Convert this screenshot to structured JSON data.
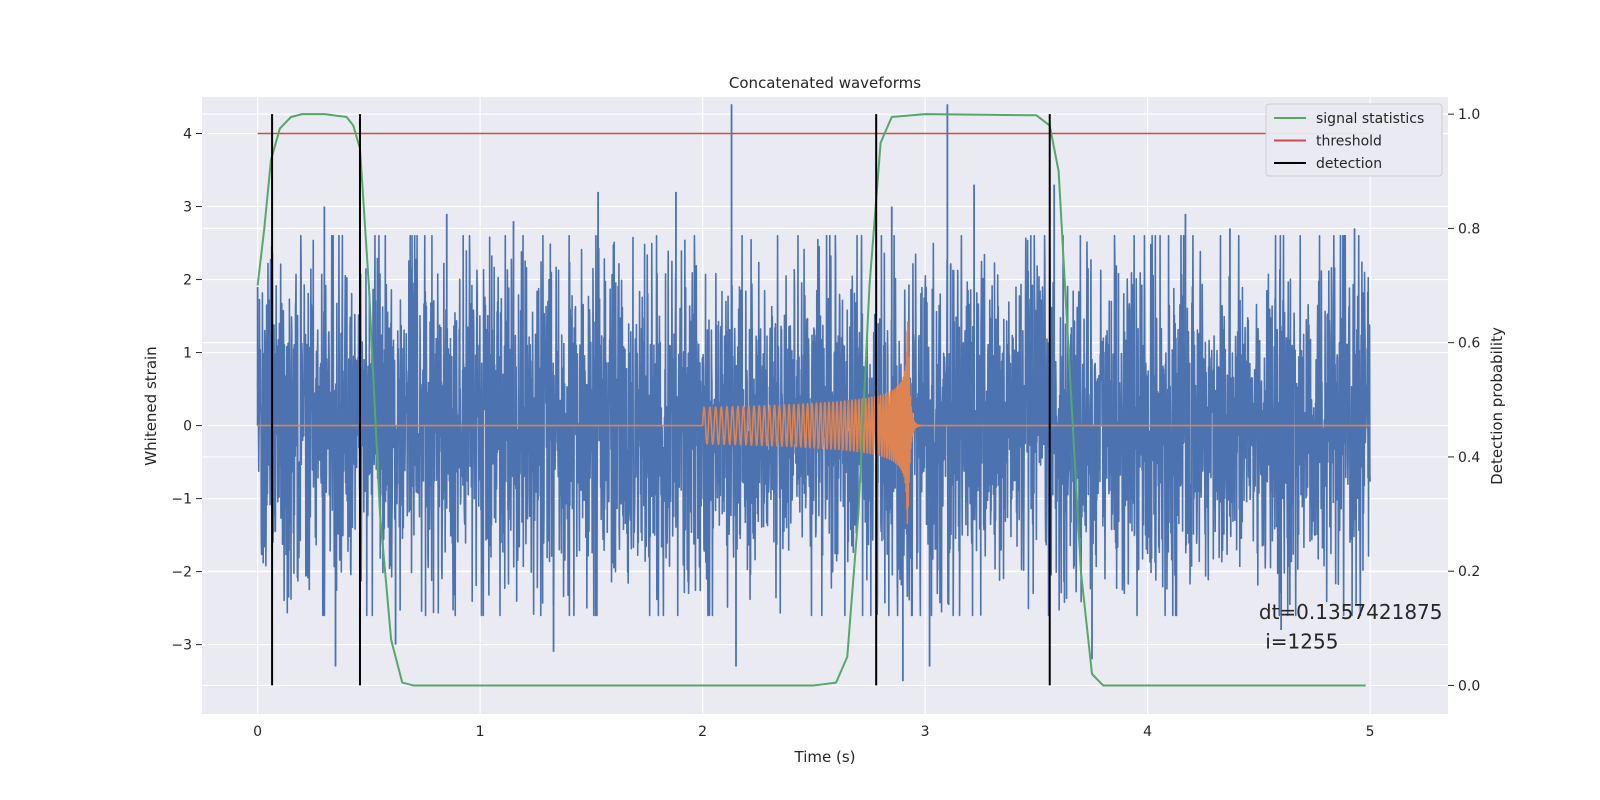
{
  "chart_data": {
    "type": "line",
    "title": "Concatenated waveforms",
    "xlabel": "Time (s)",
    "ylabel": "Whitened strain",
    "ylabel_right": "Detection probability",
    "xlim": [
      -0.25,
      5.35
    ],
    "ylim": [
      -3.95,
      4.5
    ],
    "ylim_right": [
      -0.05,
      1.03
    ],
    "x_ticks": [
      0,
      1,
      2,
      3,
      4,
      5
    ],
    "y_ticks": [
      -3,
      -2,
      -1,
      0,
      1,
      2,
      3,
      4
    ],
    "y_ticks_right": [
      0.0,
      0.2,
      0.4,
      0.6,
      0.8,
      1.0
    ],
    "grid": true,
    "legend_position": "top-right",
    "legend": [
      {
        "label": "signal statistics",
        "color": "#55a868"
      },
      {
        "label": "threshold",
        "color": "#c44e52"
      },
      {
        "label": "detection",
        "color": "#000000"
      }
    ],
    "series": [
      {
        "id": "noise",
        "color": "#4c72b0",
        "axis": "left",
        "x_range": [
          0,
          5
        ],
        "typical_amplitude": 1.2,
        "spikes": [
          {
            "x": 0.0,
            "y": 1.9
          },
          {
            "x": 0.3,
            "y": 3.0
          },
          {
            "x": 0.35,
            "y": -3.3
          },
          {
            "x": 0.62,
            "y": -3.0
          },
          {
            "x": 0.85,
            "y": 2.9
          },
          {
            "x": 1.15,
            "y": 2.8
          },
          {
            "x": 1.33,
            "y": -3.1
          },
          {
            "x": 1.53,
            "y": 3.2
          },
          {
            "x": 1.88,
            "y": 3.2
          },
          {
            "x": 2.13,
            "y": 4.4
          },
          {
            "x": 2.15,
            "y": -3.3
          },
          {
            "x": 2.85,
            "y": 3.0
          },
          {
            "x": 2.9,
            "y": -3.5
          },
          {
            "x": 3.02,
            "y": -3.3
          },
          {
            "x": 3.1,
            "y": 4.4
          },
          {
            "x": 3.22,
            "y": 3.3
          },
          {
            "x": 3.58,
            "y": 3.3
          },
          {
            "x": 3.75,
            "y": -3.2
          },
          {
            "x": 4.17,
            "y": 2.9
          },
          {
            "x": 4.37,
            "y": 2.7
          },
          {
            "x": 4.6,
            "y": -2.8
          },
          {
            "x": 4.93,
            "y": 2.7
          }
        ]
      },
      {
        "id": "chirp",
        "color": "#dd8452",
        "axis": "left",
        "x_range": [
          0,
          5
        ],
        "chirp_start": 2.0,
        "merger": 2.92,
        "merger_amplitude": 1.35,
        "start_amplitude": 0.25
      },
      {
        "id": "signal-statistics",
        "name": "signal statistics",
        "color": "#55a868",
        "axis": "right",
        "x": [
          0,
          0.03,
          0.06,
          0.1,
          0.15,
          0.2,
          0.3,
          0.4,
          0.43,
          0.46,
          0.5,
          0.55,
          0.6,
          0.65,
          0.7,
          2.5,
          2.6,
          2.65,
          2.7,
          2.75,
          2.8,
          2.85,
          3.0,
          3.5,
          3.56,
          3.6,
          3.65,
          3.7,
          3.75,
          3.8,
          4.98
        ],
        "y": [
          0.7,
          0.8,
          0.92,
          0.975,
          0.995,
          1.0,
          1.0,
          0.995,
          0.98,
          0.94,
          0.7,
          0.3,
          0.08,
          0.005,
          0.0,
          0.0,
          0.005,
          0.05,
          0.3,
          0.7,
          0.95,
          0.995,
          1.0,
          0.998,
          0.98,
          0.9,
          0.55,
          0.2,
          0.02,
          0.0,
          0.0
        ]
      },
      {
        "id": "threshold",
        "name": "threshold",
        "color": "#c44e52",
        "axis": "left",
        "x": [
          0,
          5.02
        ],
        "y": [
          4.0,
          4.0
        ]
      },
      {
        "id": "detection",
        "name": "detection",
        "color": "#000000",
        "axis": "right",
        "type": "vlines",
        "x": [
          0.065,
          0.46,
          2.78,
          3.56
        ],
        "y_range": [
          0.0,
          1.0
        ]
      }
    ],
    "annotations": [
      {
        "text": "dt=0.1357421875",
        "x": 4.5,
        "y": -2.65
      },
      {
        "text": " i=1255",
        "x": 4.5,
        "y": -3.05
      }
    ]
  }
}
